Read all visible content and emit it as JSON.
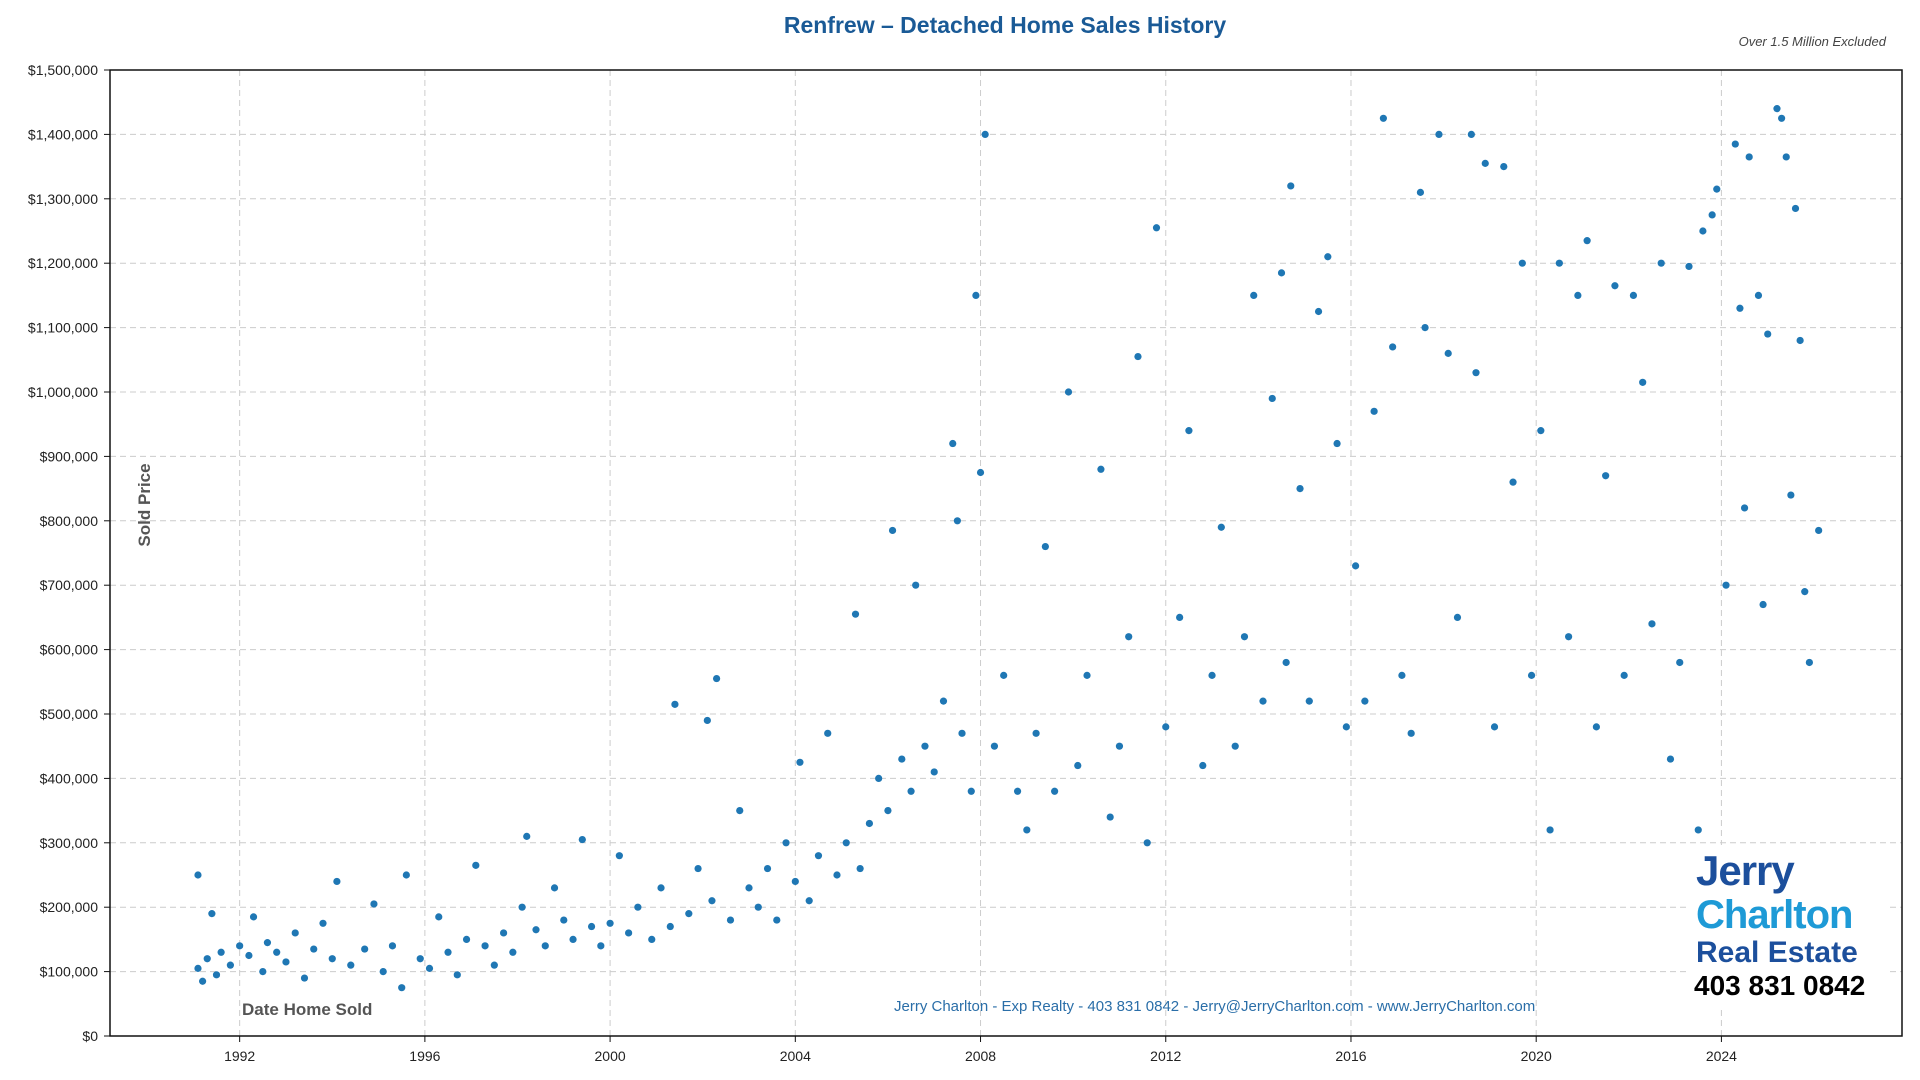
{
  "chart_data": {
    "type": "scatter",
    "title": "Renfrew – Detached Home Sales History",
    "note": "Over 1.5 Million Excluded",
    "xlabel": "Date Home Sold",
    "ylabel": "Sold Price",
    "xlim": [
      1989.2,
      2027.9
    ],
    "ylim": [
      0,
      1500000
    ],
    "x_ticks": [
      "1992",
      "1996",
      "2000",
      "2004",
      "2008",
      "2012",
      "2016",
      "2020",
      "2024"
    ],
    "y_ticks": [
      "$0",
      "$100,000",
      "$200,000",
      "$300,000",
      "$400,000",
      "$500,000",
      "$600,000",
      "$700,000",
      "$800,000",
      "$900,000",
      "$1,000,000",
      "$1,100,000",
      "$1,200,000",
      "$1,300,000",
      "$1,400,000",
      "$1,500,000"
    ],
    "grid": true,
    "marker_color": "#1f77b4",
    "points": [
      [
        1991.1,
        105000
      ],
      [
        1991.1,
        250000
      ],
      [
        1991.2,
        85000
      ],
      [
        1991.3,
        120000
      ],
      [
        1991.4,
        190000
      ],
      [
        1991.5,
        95000
      ],
      [
        1991.6,
        130000
      ],
      [
        1991.8,
        110000
      ],
      [
        1992.0,
        140000
      ],
      [
        1992.2,
        125000
      ],
      [
        1992.3,
        185000
      ],
      [
        1992.5,
        100000
      ],
      [
        1992.6,
        145000
      ],
      [
        1992.8,
        130000
      ],
      [
        1993.0,
        115000
      ],
      [
        1993.2,
        160000
      ],
      [
        1993.4,
        90000
      ],
      [
        1993.6,
        135000
      ],
      [
        1993.8,
        175000
      ],
      [
        1994.0,
        120000
      ],
      [
        1994.1,
        240000
      ],
      [
        1994.4,
        110000
      ],
      [
        1994.7,
        135000
      ],
      [
        1994.9,
        205000
      ],
      [
        1995.1,
        100000
      ],
      [
        1995.3,
        140000
      ],
      [
        1995.5,
        75000
      ],
      [
        1995.6,
        250000
      ],
      [
        1995.9,
        120000
      ],
      [
        1996.1,
        105000
      ],
      [
        1996.3,
        185000
      ],
      [
        1996.5,
        130000
      ],
      [
        1996.7,
        95000
      ],
      [
        1996.9,
        150000
      ],
      [
        1997.1,
        265000
      ],
      [
        1997.3,
        140000
      ],
      [
        1997.5,
        110000
      ],
      [
        1997.7,
        160000
      ],
      [
        1997.9,
        130000
      ],
      [
        1998.1,
        200000
      ],
      [
        1998.2,
        310000
      ],
      [
        1998.4,
        165000
      ],
      [
        1998.6,
        140000
      ],
      [
        1998.8,
        230000
      ],
      [
        1999.0,
        180000
      ],
      [
        1999.2,
        150000
      ],
      [
        1999.4,
        305000
      ],
      [
        1999.6,
        170000
      ],
      [
        1999.8,
        140000
      ],
      [
        2000.0,
        175000
      ],
      [
        2000.2,
        280000
      ],
      [
        2000.4,
        160000
      ],
      [
        2000.6,
        200000
      ],
      [
        2000.9,
        150000
      ],
      [
        2001.1,
        230000
      ],
      [
        2001.3,
        170000
      ],
      [
        2001.4,
        515000
      ],
      [
        2001.7,
        190000
      ],
      [
        2001.9,
        260000
      ],
      [
        2002.1,
        490000
      ],
      [
        2002.2,
        210000
      ],
      [
        2002.3,
        555000
      ],
      [
        2002.6,
        180000
      ],
      [
        2002.8,
        350000
      ],
      [
        2003.0,
        230000
      ],
      [
        2003.2,
        200000
      ],
      [
        2003.4,
        260000
      ],
      [
        2003.6,
        180000
      ],
      [
        2003.8,
        300000
      ],
      [
        2004.0,
        240000
      ],
      [
        2004.1,
        425000
      ],
      [
        2004.3,
        210000
      ],
      [
        2004.5,
        280000
      ],
      [
        2004.7,
        470000
      ],
      [
        2004.9,
        250000
      ],
      [
        2005.1,
        300000
      ],
      [
        2005.3,
        655000
      ],
      [
        2005.4,
        260000
      ],
      [
        2005.6,
        330000
      ],
      [
        2005.8,
        400000
      ],
      [
        2006.0,
        350000
      ],
      [
        2006.1,
        785000
      ],
      [
        2006.3,
        430000
      ],
      [
        2006.5,
        380000
      ],
      [
        2006.6,
        700000
      ],
      [
        2006.8,
        450000
      ],
      [
        2007.0,
        410000
      ],
      [
        2007.2,
        520000
      ],
      [
        2007.4,
        920000
      ],
      [
        2007.5,
        800000
      ],
      [
        2007.6,
        470000
      ],
      [
        2007.8,
        380000
      ],
      [
        2007.9,
        1150000
      ],
      [
        2008.0,
        875000
      ],
      [
        2008.1,
        1400000
      ],
      [
        2008.3,
        450000
      ],
      [
        2008.5,
        560000
      ],
      [
        2008.8,
        380000
      ],
      [
        2009.0,
        320000
      ],
      [
        2009.2,
        470000
      ],
      [
        2009.4,
        760000
      ],
      [
        2009.6,
        380000
      ],
      [
        2009.9,
        1000000
      ],
      [
        2010.1,
        420000
      ],
      [
        2010.3,
        560000
      ],
      [
        2010.6,
        880000
      ],
      [
        2010.8,
        340000
      ],
      [
        2011.0,
        450000
      ],
      [
        2011.2,
        620000
      ],
      [
        2011.4,
        1055000
      ],
      [
        2011.6,
        300000
      ],
      [
        2011.8,
        1255000
      ],
      [
        2012.0,
        480000
      ],
      [
        2012.3,
        650000
      ],
      [
        2012.5,
        940000
      ],
      [
        2012.8,
        420000
      ],
      [
        2013.0,
        560000
      ],
      [
        2013.2,
        790000
      ],
      [
        2013.5,
        450000
      ],
      [
        2013.7,
        620000
      ],
      [
        2013.9,
        1150000
      ],
      [
        2014.1,
        520000
      ],
      [
        2014.3,
        990000
      ],
      [
        2014.5,
        1185000
      ],
      [
        2014.6,
        580000
      ],
      [
        2014.7,
        1320000
      ],
      [
        2014.9,
        850000
      ],
      [
        2015.1,
        520000
      ],
      [
        2015.3,
        1125000
      ],
      [
        2015.5,
        1210000
      ],
      [
        2015.7,
        920000
      ],
      [
        2015.9,
        480000
      ],
      [
        2016.1,
        730000
      ],
      [
        2016.3,
        520000
      ],
      [
        2016.5,
        970000
      ],
      [
        2016.7,
        1425000
      ],
      [
        2016.9,
        1070000
      ],
      [
        2017.1,
        560000
      ],
      [
        2017.3,
        470000
      ],
      [
        2017.5,
        1310000
      ],
      [
        2017.6,
        1100000
      ],
      [
        2017.9,
        1400000
      ],
      [
        2018.1,
        1060000
      ],
      [
        2018.3,
        650000
      ],
      [
        2018.6,
        1400000
      ],
      [
        2018.7,
        1030000
      ],
      [
        2018.9,
        1355000
      ],
      [
        2019.1,
        480000
      ],
      [
        2019.3,
        1350000
      ],
      [
        2019.5,
        860000
      ],
      [
        2019.7,
        1200000
      ],
      [
        2019.9,
        560000
      ],
      [
        2020.1,
        940000
      ],
      [
        2020.3,
        320000
      ],
      [
        2020.5,
        1200000
      ],
      [
        2020.7,
        620000
      ],
      [
        2020.9,
        1150000
      ],
      [
        2021.1,
        1235000
      ],
      [
        2021.3,
        480000
      ],
      [
        2021.5,
        870000
      ],
      [
        2021.7,
        1165000
      ],
      [
        2021.9,
        560000
      ],
      [
        2022.1,
        1150000
      ],
      [
        2022.3,
        1015000
      ],
      [
        2022.5,
        640000
      ],
      [
        2022.7,
        1200000
      ],
      [
        2022.9,
        430000
      ],
      [
        2023.1,
        580000
      ],
      [
        2023.3,
        1195000
      ],
      [
        2023.5,
        320000
      ],
      [
        2023.6,
        1250000
      ],
      [
        2023.8,
        1275000
      ],
      [
        2023.9,
        1315000
      ],
      [
        2024.1,
        700000
      ],
      [
        2024.3,
        1385000
      ],
      [
        2024.4,
        1130000
      ],
      [
        2024.5,
        820000
      ],
      [
        2024.6,
        1365000
      ],
      [
        2024.8,
        1150000
      ],
      [
        2024.9,
        670000
      ],
      [
        2025.0,
        1090000
      ],
      [
        2025.2,
        1440000
      ],
      [
        2025.3,
        1425000
      ],
      [
        2025.4,
        1365000
      ],
      [
        2025.5,
        840000
      ],
      [
        2025.6,
        1285000
      ],
      [
        2025.7,
        1080000
      ],
      [
        2025.8,
        690000
      ],
      [
        2025.9,
        580000
      ],
      [
        2026.1,
        785000
      ]
    ]
  },
  "footer": "Jerry Charlton - Exp Realty - 403 831 0842 - Jerry@JerryCharlton.com - www.JerryCharlton.com",
  "logo": {
    "line1": "Jerry",
    "line2": "Charlton",
    "line3": "Real Estate",
    "phone": "403 831 0842"
  }
}
